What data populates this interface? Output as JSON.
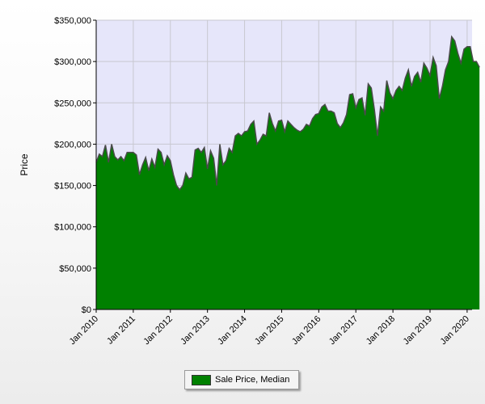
{
  "chart_data": {
    "type": "area",
    "ylabel": "Price",
    "xlabel": "",
    "ylim": [
      0,
      350000
    ],
    "yticks": [
      "$0",
      "$50,000",
      "$100,000",
      "$150,000",
      "$200,000",
      "$250,000",
      "$300,000",
      "$350,000"
    ],
    "xticks": [
      "Jan 2010",
      "Jan 2011",
      "Jan 2012",
      "Jan 2013",
      "Jan 2014",
      "Jan 2015",
      "Jan 2016",
      "Jan 2017",
      "Jan 2018",
      "Jan 2019",
      "Jan 2020"
    ],
    "x_start": "Jan 2010",
    "x_end": "Feb 2020",
    "grid": true,
    "legend_position": "bottom",
    "colors": {
      "fill": "#008000",
      "line": "#4a4a4a",
      "plot_bg": "#e6e6fa"
    },
    "series": [
      {
        "name": "Sale Price, Median",
        "values": [
          178000,
          188000,
          185000,
          199000,
          178000,
          200000,
          185000,
          181000,
          185000,
          180000,
          190000,
          190000,
          190000,
          187000,
          163000,
          175000,
          184000,
          168000,
          182000,
          172000,
          194000,
          190000,
          175000,
          186000,
          180000,
          163000,
          150000,
          145000,
          150000,
          165000,
          158000,
          160000,
          193000,
          195000,
          190000,
          196000,
          170000,
          192000,
          183000,
          150000,
          200000,
          175000,
          180000,
          195000,
          190000,
          210000,
          213000,
          210000,
          215000,
          216000,
          224000,
          228000,
          200000,
          205000,
          212000,
          210000,
          238000,
          225000,
          216000,
          228000,
          229000,
          215000,
          228000,
          224000,
          220000,
          217000,
          215000,
          218000,
          224000,
          222000,
          231000,
          236000,
          237000,
          245000,
          248000,
          240000,
          240000,
          238000,
          225000,
          220000,
          226000,
          236000,
          260000,
          261000,
          244000,
          254000,
          256000,
          235000,
          273000,
          268000,
          242000,
          210000,
          245000,
          240000,
          277000,
          262000,
          255000,
          265000,
          270000,
          265000,
          280000,
          290000,
          270000,
          282000,
          287000,
          275000,
          298000,
          292000,
          283000,
          305000,
          295000,
          255000,
          270000,
          290000,
          300000,
          330000,
          325000,
          310000,
          298000,
          315000,
          318000,
          318000,
          300000,
          300000,
          293000
        ]
      }
    ]
  }
}
